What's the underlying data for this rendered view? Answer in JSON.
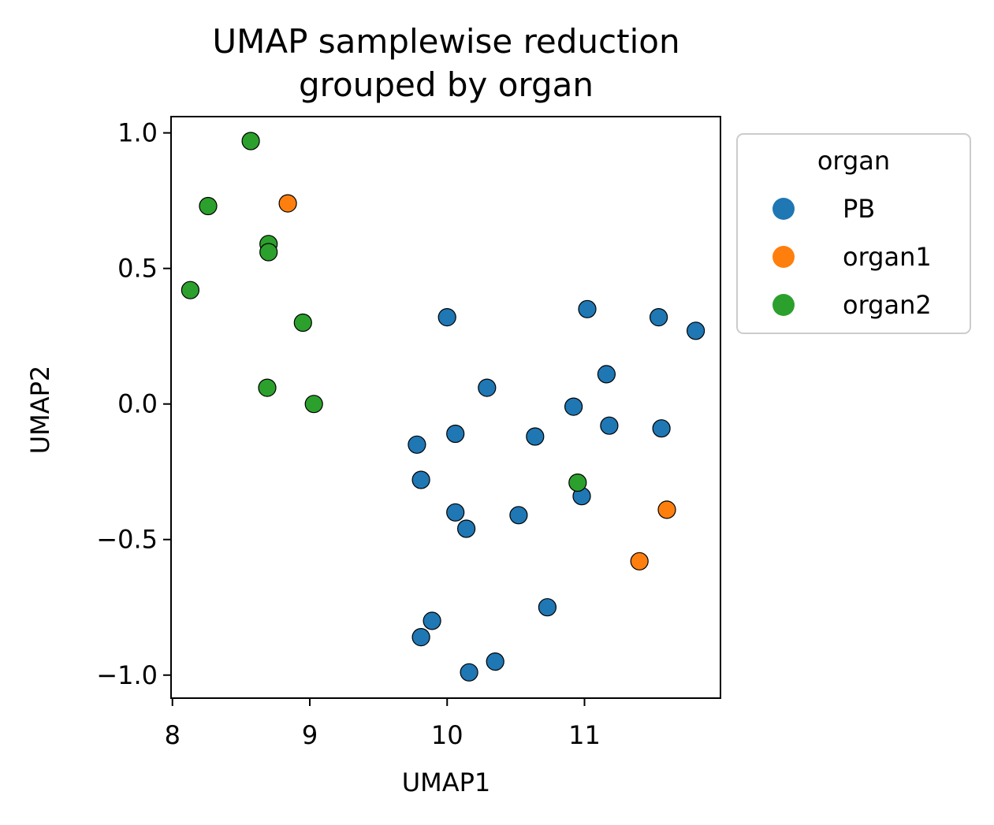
{
  "chart_data": {
    "type": "scatter",
    "title_lines": [
      "UMAP samplewise reduction",
      "grouped by organ"
    ],
    "xlabel": "UMAP1",
    "ylabel": "UMAP2",
    "xlim": [
      7.99,
      11.99
    ],
    "ylim": [
      -1.085,
      1.06
    ],
    "xticks": [
      8,
      9,
      10,
      11
    ],
    "xtick_labels": [
      "8",
      "9",
      "10",
      "11"
    ],
    "yticks": [
      1.0,
      0.5,
      0.0,
      -0.5,
      -1.0
    ],
    "ytick_labels": [
      "1.0",
      "0.5",
      "0.0",
      "−0.5",
      "−1.0"
    ],
    "grid": false,
    "legend_title": "organ",
    "legend_placement": "outside-upper-right",
    "series": [
      {
        "name": "PB",
        "color": "#1f77b4",
        "points": [
          [
            10.0,
            0.32
          ],
          [
            11.02,
            0.35
          ],
          [
            11.54,
            0.32
          ],
          [
            11.81,
            0.27
          ],
          [
            11.16,
            0.11
          ],
          [
            10.29,
            0.06
          ],
          [
            10.92,
            -0.01
          ],
          [
            11.18,
            -0.08
          ],
          [
            11.56,
            -0.09
          ],
          [
            10.06,
            -0.11
          ],
          [
            10.64,
            -0.12
          ],
          [
            9.78,
            -0.15
          ],
          [
            9.81,
            -0.28
          ],
          [
            10.98,
            -0.34
          ],
          [
            10.06,
            -0.4
          ],
          [
            10.52,
            -0.41
          ],
          [
            10.14,
            -0.46
          ],
          [
            10.73,
            -0.75
          ],
          [
            9.89,
            -0.8
          ],
          [
            9.81,
            -0.86
          ],
          [
            10.35,
            -0.95
          ],
          [
            10.16,
            -0.99
          ]
        ]
      },
      {
        "name": "organ1",
        "color": "#ff7f0e",
        "points": [
          [
            8.84,
            0.74
          ],
          [
            11.6,
            -0.39
          ],
          [
            11.4,
            -0.58
          ]
        ]
      },
      {
        "name": "organ2",
        "color": "#2ca02c",
        "points": [
          [
            8.57,
            0.97
          ],
          [
            8.26,
            0.73
          ],
          [
            8.7,
            0.59
          ],
          [
            8.7,
            0.56
          ],
          [
            8.13,
            0.42
          ],
          [
            8.95,
            0.3
          ],
          [
            8.69,
            0.06
          ],
          [
            9.03,
            0.0
          ],
          [
            10.95,
            -0.29
          ]
        ]
      }
    ]
  }
}
